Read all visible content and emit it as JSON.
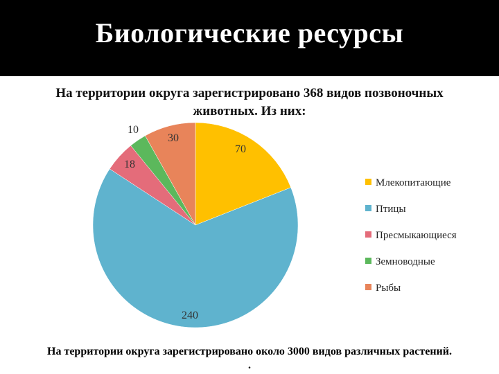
{
  "header": {
    "title": "Биологические ресурсы"
  },
  "footer": {
    "text": "На территории округа зарегистрировано около 3000 видов различных растений.",
    "dot": "."
  },
  "chart_data": {
    "type": "pie",
    "title": "На территории округа зарегистрировано 368 видов позвоночных животных. Из них:",
    "categories": [
      "Млекопитающие",
      "Птицы",
      "Пресмыкающиеся",
      "Земноводные",
      "Рыбы"
    ],
    "values": [
      70,
      240,
      18,
      10,
      30
    ],
    "colors": [
      "#FFC000",
      "#5FB3CE",
      "#E46C7A",
      "#5CB85C",
      "#E8845A"
    ],
    "legend_position": "right",
    "data_labels": true
  }
}
